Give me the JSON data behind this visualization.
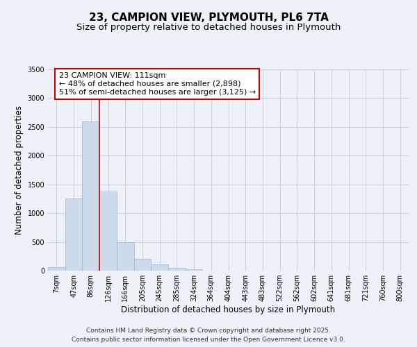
{
  "title": "23, CAMPION VIEW, PLYMOUTH, PL6 7TA",
  "subtitle": "Size of property relative to detached houses in Plymouth",
  "xlabel": "Distribution of detached houses by size in Plymouth",
  "ylabel": "Number of detached properties",
  "categories": [
    "7sqm",
    "47sqm",
    "86sqm",
    "126sqm",
    "166sqm",
    "205sqm",
    "245sqm",
    "285sqm",
    "324sqm",
    "364sqm",
    "404sqm",
    "443sqm",
    "483sqm",
    "522sqm",
    "562sqm",
    "602sqm",
    "641sqm",
    "681sqm",
    "721sqm",
    "760sqm",
    "800sqm"
  ],
  "values": [
    55,
    1250,
    2600,
    1370,
    500,
    200,
    110,
    45,
    20,
    5,
    2,
    1,
    0,
    0,
    0,
    0,
    0,
    0,
    0,
    0,
    0
  ],
  "bar_color": "#ccdaec",
  "bar_edge_color": "#9ab4cc",
  "grid_color": "#c5d0df",
  "background_color": "#eef2f8",
  "vline_color": "#cc0000",
  "vline_x": 2.5,
  "annotation_text": "23 CAMPION VIEW: 111sqm\n← 48% of detached houses are smaller (2,898)\n51% of semi-detached houses are larger (3,125) →",
  "annotation_box_color": "#ffffff",
  "annotation_box_edge": "#cc0000",
  "ylim": [
    0,
    3500
  ],
  "yticks": [
    0,
    500,
    1000,
    1500,
    2000,
    2500,
    3000,
    3500
  ],
  "footer_line1": "Contains HM Land Registry data © Crown copyright and database right 2025.",
  "footer_line2": "Contains public sector information licensed under the Open Government Licence v3.0.",
  "title_fontsize": 11,
  "subtitle_fontsize": 9.5,
  "axis_label_fontsize": 8.5,
  "tick_fontsize": 7,
  "annotation_fontsize": 8,
  "footer_fontsize": 6.5
}
